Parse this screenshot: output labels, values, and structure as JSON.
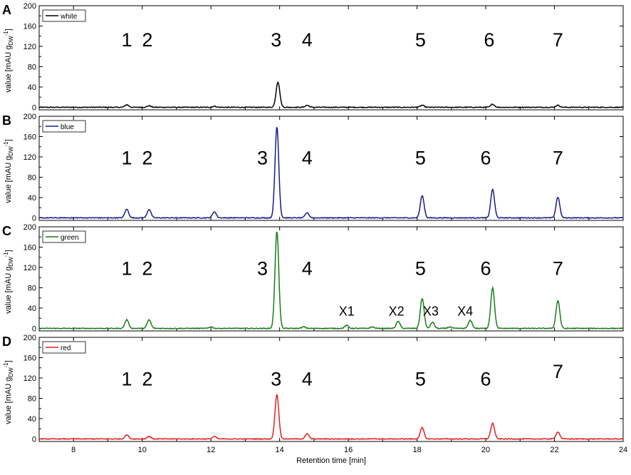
{
  "figure": {
    "xlabel": "Retention time [min]",
    "ylabel": "value [mAU g",
    "ylabel_sub": "DW",
    "ylabel_sup": "-1",
    "ylabel_end": "]",
    "xlim": [
      7,
      24
    ],
    "xticks": [
      8,
      10,
      12,
      14,
      16,
      18,
      20,
      22,
      24
    ],
    "xtick_labels": [
      "8",
      "10",
      "12",
      "14",
      "16",
      "18",
      "20",
      "22",
      "24"
    ],
    "ylim": [
      -5,
      200
    ],
    "yticks": [
      0,
      40,
      80,
      120,
      160,
      200
    ],
    "ytick_labels": [
      "0",
      "40",
      "80",
      "120",
      "160",
      "200"
    ]
  },
  "chart_data": [
    {
      "type": "line",
      "panel": "A",
      "color": "#000000",
      "series": [
        {
          "name": "white"
        }
      ],
      "peaks": [
        {
          "x": 9.55,
          "y": 5
        },
        {
          "x": 10.2,
          "y": 3
        },
        {
          "x": 12.1,
          "y": 2
        },
        {
          "x": 13.95,
          "y": 50
        },
        {
          "x": 14.8,
          "y": 4
        },
        {
          "x": 18.15,
          "y": 4
        },
        {
          "x": 20.2,
          "y": 6
        },
        {
          "x": 22.1,
          "y": 4
        }
      ],
      "peak_labels": [
        {
          "text": "1",
          "x": 9.55,
          "y": 120
        },
        {
          "text": "2",
          "x": 10.15,
          "y": 120
        },
        {
          "text": "3",
          "x": 13.9,
          "y": 120
        },
        {
          "text": "4",
          "x": 14.8,
          "y": 120
        },
        {
          "text": "5",
          "x": 18.1,
          "y": 120
        },
        {
          "text": "6",
          "x": 20.1,
          "y": 120
        },
        {
          "text": "7",
          "x": 22.1,
          "y": 120
        }
      ]
    },
    {
      "type": "line",
      "panel": "B",
      "color": "#1a1a8c",
      "series": [
        {
          "name": "blue"
        }
      ],
      "peaks": [
        {
          "x": 9.55,
          "y": 17
        },
        {
          "x": 10.2,
          "y": 17
        },
        {
          "x": 12.1,
          "y": 12
        },
        {
          "x": 13.92,
          "y": 180
        },
        {
          "x": 14.8,
          "y": 10
        },
        {
          "x": 18.15,
          "y": 44
        },
        {
          "x": 20.2,
          "y": 56
        },
        {
          "x": 22.1,
          "y": 41
        }
      ],
      "peak_labels": [
        {
          "text": "1",
          "x": 9.55,
          "y": 105
        },
        {
          "text": "2",
          "x": 10.15,
          "y": 105
        },
        {
          "text": "3",
          "x": 13.5,
          "y": 105
        },
        {
          "text": "4",
          "x": 14.8,
          "y": 105
        },
        {
          "text": "5",
          "x": 18.1,
          "y": 105
        },
        {
          "text": "6",
          "x": 20.0,
          "y": 105
        },
        {
          "text": "7",
          "x": 22.1,
          "y": 105
        }
      ]
    },
    {
      "type": "line",
      "panel": "C",
      "color": "#1a7a1a",
      "series": [
        {
          "name": "green"
        }
      ],
      "peaks": [
        {
          "x": 9.55,
          "y": 17
        },
        {
          "x": 10.2,
          "y": 17
        },
        {
          "x": 12.0,
          "y": 3
        },
        {
          "x": 13.92,
          "y": 192
        },
        {
          "x": 14.7,
          "y": 3
        },
        {
          "x": 15.95,
          "y": 6
        },
        {
          "x": 16.7,
          "y": 3
        },
        {
          "x": 17.45,
          "y": 14
        },
        {
          "x": 18.15,
          "y": 59
        },
        {
          "x": 18.45,
          "y": 12
        },
        {
          "x": 18.95,
          "y": 3
        },
        {
          "x": 19.55,
          "y": 16
        },
        {
          "x": 20.2,
          "y": 80
        },
        {
          "x": 22.1,
          "y": 55
        }
      ],
      "peak_labels": [
        {
          "text": "1",
          "x": 9.55,
          "y": 105
        },
        {
          "text": "2",
          "x": 10.15,
          "y": 105
        },
        {
          "text": "3",
          "x": 13.5,
          "y": 105
        },
        {
          "text": "4",
          "x": 14.8,
          "y": 105
        },
        {
          "text": "5",
          "x": 18.1,
          "y": 105
        },
        {
          "text": "6",
          "x": 20.0,
          "y": 105
        },
        {
          "text": "7",
          "x": 22.1,
          "y": 105
        }
      ],
      "small_labels": [
        {
          "text": "X1",
          "x": 15.95,
          "y": 25
        },
        {
          "text": "X2",
          "x": 17.4,
          "y": 25
        },
        {
          "text": "X3",
          "x": 18.4,
          "y": 25
        },
        {
          "text": "X4",
          "x": 19.4,
          "y": 25
        }
      ]
    },
    {
      "type": "line",
      "panel": "D",
      "color": "#e02020",
      "series": [
        {
          "name": "red"
        }
      ],
      "peaks": [
        {
          "x": 9.55,
          "y": 8
        },
        {
          "x": 10.2,
          "y": 5
        },
        {
          "x": 12.1,
          "y": 5
        },
        {
          "x": 13.92,
          "y": 88
        },
        {
          "x": 14.8,
          "y": 10
        },
        {
          "x": 18.15,
          "y": 22
        },
        {
          "x": 20.2,
          "y": 31
        },
        {
          "x": 22.1,
          "y": 14
        }
      ],
      "peak_labels": [
        {
          "text": "1",
          "x": 9.55,
          "y": 105
        },
        {
          "text": "2",
          "x": 10.15,
          "y": 105
        },
        {
          "text": "3",
          "x": 13.9,
          "y": 105
        },
        {
          "text": "4",
          "x": 14.8,
          "y": 105
        },
        {
          "text": "5",
          "x": 18.1,
          "y": 105
        },
        {
          "text": "6",
          "x": 20.0,
          "y": 105
        },
        {
          "text": "7",
          "x": 22.1,
          "y": 120
        }
      ]
    }
  ]
}
